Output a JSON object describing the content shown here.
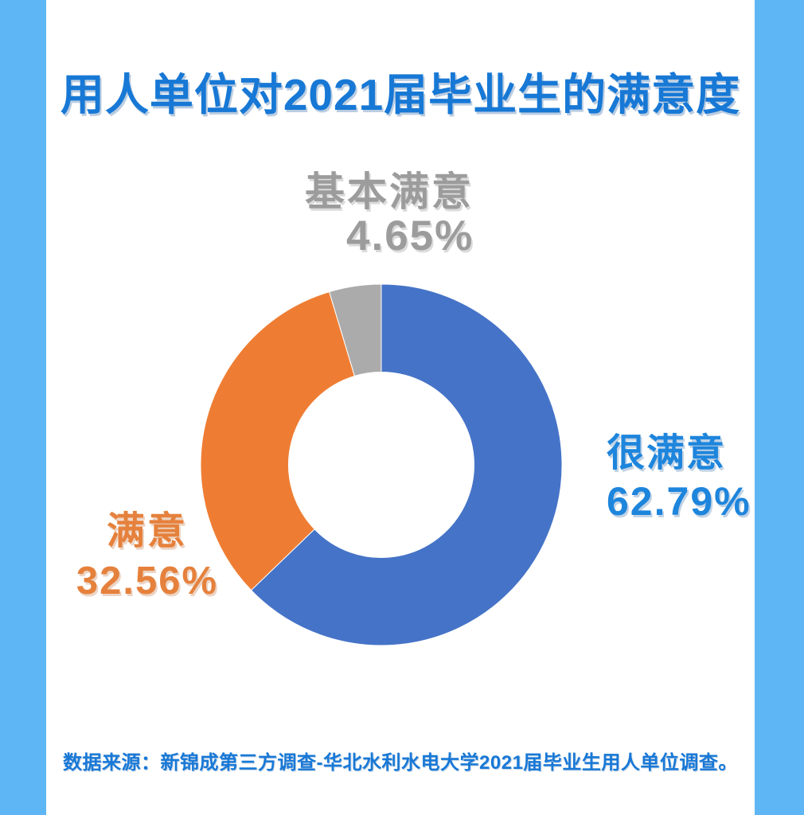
{
  "page": {
    "title": "用人单位对2021届毕业生的满意度",
    "source_note": "数据来源：新锦成第三方调查-华北水利水电大学2021届毕业生用人单位调查。"
  },
  "colors": {
    "frame_blue": "#5FB6F4",
    "card_background": "#FFFFFF",
    "title_blue": "#1778D5",
    "footer_blue": "#1878D6",
    "label_blue": "#1E85DC",
    "label_orange": "#E5813C",
    "label_gray": "#9C9C9C",
    "slice_blue": "#4573C7",
    "slice_orange": "#EE7D33",
    "slice_gray": "#ABABAB"
  },
  "chart_data": {
    "type": "pie",
    "subtype": "donut",
    "title": "用人单位对2021届毕业生的满意度",
    "categories": [
      "很满意",
      "满意",
      "基本满意"
    ],
    "values": [
      62.79,
      32.56,
      4.65
    ],
    "unit": "%",
    "colors": [
      "#4573C7",
      "#EE7D33",
      "#ABABAB"
    ],
    "start_angle_deg": 0,
    "direction": "clockwise",
    "inner_radius_ratio": 0.515,
    "legend_position": "none",
    "labels": [
      {
        "name": "很满意",
        "value_text": "62.79%",
        "position": "right"
      },
      {
        "name": "满意",
        "value_text": "32.56%",
        "position": "left"
      },
      {
        "name": "基本满意",
        "value_text": "4.65%",
        "position": "top"
      }
    ]
  }
}
